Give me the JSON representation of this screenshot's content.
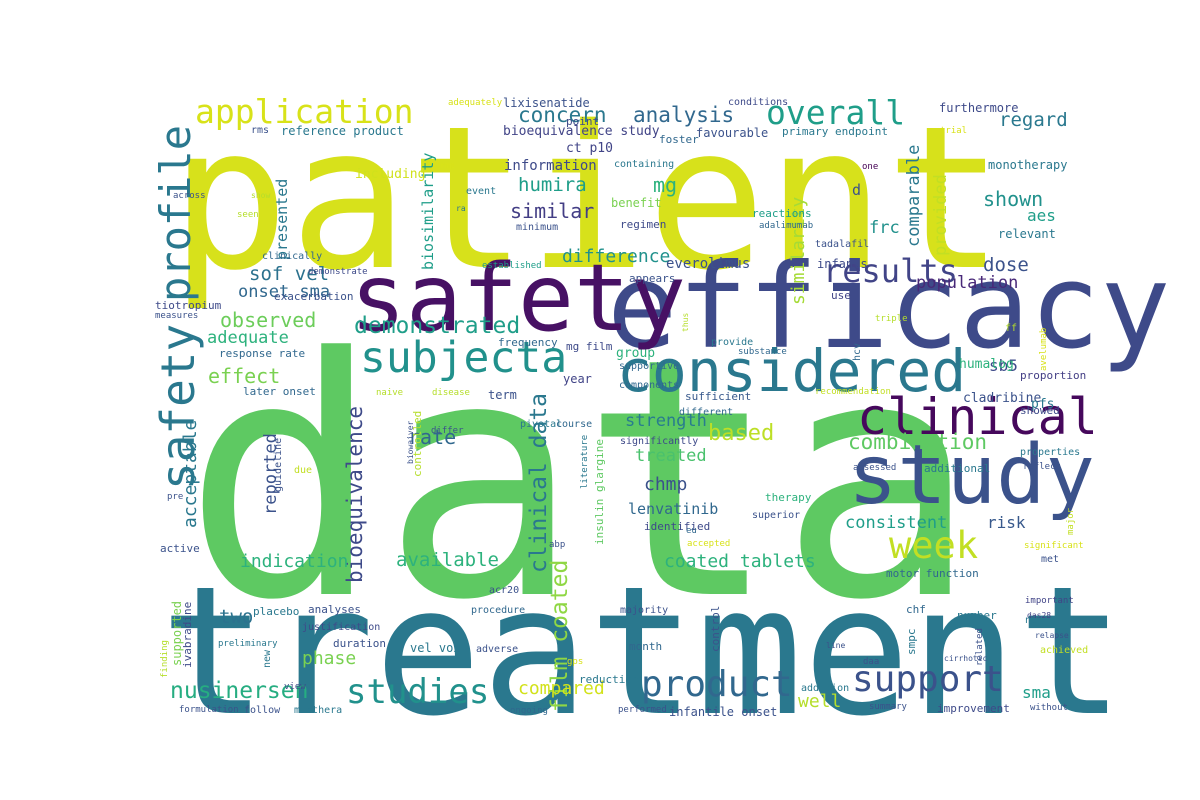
{
  "words": [
    {
      "text": "data",
      "color": "#5ec962"
    },
    {
      "text": "patient",
      "color": "#d7e11b"
    },
    {
      "text": "treatment",
      "color": "#2a788e"
    },
    {
      "text": "efficacy",
      "color": "#3e4a89"
    },
    {
      "text": "safety",
      "color": "#471164"
    },
    {
      "text": "study",
      "color": "#3b528b"
    },
    {
      "text": "considered",
      "color": "#2a788e"
    },
    {
      "text": "clinical",
      "color": "#46085c"
    },
    {
      "text": "subjecta",
      "color": "#21918c"
    },
    {
      "text": "safety",
      "color": "#2a788e"
    },
    {
      "text": "profile",
      "color": "#2a788e"
    },
    {
      "text": "application",
      "color": "#d8e219"
    },
    {
      "text": "overall",
      "color": "#1f9e89"
    },
    {
      "text": "results",
      "color": "#414487"
    },
    {
      "text": "week",
      "color": "#c2df23"
    },
    {
      "text": "support",
      "color": "#3b528b"
    },
    {
      "text": "product",
      "color": "#31688e"
    },
    {
      "text": "studies",
      "color": "#21918c"
    },
    {
      "text": "nusinersen",
      "color": "#26ad81"
    },
    {
      "text": "demonstrated",
      "color": "#1f9e89"
    },
    {
      "text": "combination",
      "color": "#5ec962"
    },
    {
      "text": "based",
      "color": "#bddf26"
    },
    {
      "text": "clinical data",
      "color": "#2a788e"
    },
    {
      "text": "film coated",
      "color": "#8fd744"
    },
    {
      "text": "bioequivalence",
      "color": "#3e4a89"
    },
    {
      "text": "concern",
      "color": "#2a788e"
    },
    {
      "text": "analysis",
      "color": "#31688e"
    },
    {
      "text": "humira",
      "color": "#1f9e89"
    },
    {
      "text": "similar",
      "color": "#433e85"
    },
    {
      "text": "mg",
      "color": "#2db27d"
    },
    {
      "text": "frc",
      "color": "#21918c"
    },
    {
      "text": "d",
      "color": "#3b528b"
    },
    {
      "text": "difference",
      "color": "#21918c"
    },
    {
      "text": "sof vel",
      "color": "#2c728e"
    },
    {
      "text": "onset sma",
      "color": "#31688e"
    },
    {
      "text": "observed",
      "color": "#6ccd5a"
    },
    {
      "text": "adequate",
      "color": "#2db27d"
    },
    {
      "text": "effect",
      "color": "#7ad151"
    },
    {
      "text": "acceptable",
      "color": "#2a788e"
    },
    {
      "text": "reported",
      "color": "#3b528b"
    },
    {
      "text": "rate",
      "color": "#31688e"
    },
    {
      "text": "dose",
      "color": "#3b528b"
    },
    {
      "text": "population",
      "color": "#482878"
    },
    {
      "text": "shown",
      "color": "#21918c"
    },
    {
      "text": "aes",
      "color": "#1f9e89"
    },
    {
      "text": "regard",
      "color": "#2a788e"
    },
    {
      "text": "similarity",
      "color": "#a5db36"
    },
    {
      "text": "comparable",
      "color": "#2a788e"
    },
    {
      "text": "provided",
      "color": "#c2df23"
    },
    {
      "text": "strength",
      "color": "#287c8e"
    },
    {
      "text": "treated",
      "color": "#4ac16d"
    },
    {
      "text": "chmp",
      "color": "#3b528b"
    },
    {
      "text": "lenvatinib",
      "color": "#31688e"
    },
    {
      "text": "consistent",
      "color": "#1f9e89"
    },
    {
      "text": "risk",
      "color": "#38598c"
    },
    {
      "text": "sb5",
      "color": "#3e4a89"
    },
    {
      "text": "indication",
      "color": "#2db27d"
    },
    {
      "text": "available",
      "color": "#2db27d"
    },
    {
      "text": "coated tablets",
      "color": "#2db27d"
    },
    {
      "text": "two",
      "color": "#2c728e"
    },
    {
      "text": "phase",
      "color": "#7ad151"
    },
    {
      "text": "compared",
      "color": "#d2e21b"
    },
    {
      "text": "well",
      "color": "#b5de2b"
    },
    {
      "text": "sma",
      "color": "#1f9e89"
    },
    {
      "text": "biosimilarity",
      "color": "#1f9e89"
    },
    {
      "text": "presented",
      "color": "#2a788e"
    },
    {
      "text": "information",
      "color": "#3e4a89"
    },
    {
      "text": "ct p10",
      "color": "#414487"
    },
    {
      "text": "everolimus",
      "color": "#3b528b"
    },
    {
      "text": "furthermore",
      "color": "#3e4a89"
    },
    {
      "text": "monotherapy",
      "color": "#2a788e"
    },
    {
      "text": "relevant",
      "color": "#2a788e"
    },
    {
      "text": "group",
      "color": "#2db27d"
    },
    {
      "text": "supportive",
      "color": "#31688e"
    },
    {
      "text": "mg film",
      "color": "#3e4a89"
    },
    {
      "text": "frequency",
      "color": "#31688e"
    },
    {
      "text": "year",
      "color": "#414487"
    },
    {
      "text": "term",
      "color": "#3b528b"
    },
    {
      "text": "components",
      "color": "#31688e"
    },
    {
      "text": "sufficient",
      "color": "#38598c"
    },
    {
      "text": "appears",
      "color": "#3b528b"
    },
    {
      "text": "infants",
      "color": "#3e4a89"
    },
    {
      "text": "use",
      "color": "#414487"
    },
    {
      "text": "humalog",
      "color": "#2db27d"
    },
    {
      "text": "cladribine",
      "color": "#3b528b"
    },
    {
      "text": "pfs",
      "color": "#2a788e"
    },
    {
      "text": "proportion",
      "color": "#433e85"
    },
    {
      "text": "showed",
      "color": "#3e4a89"
    },
    {
      "text": "including",
      "color": "#d0e11c"
    },
    {
      "text": "bioequivalence study",
      "color": "#414487"
    },
    {
      "text": "reference product",
      "color": "#2a788e"
    },
    {
      "text": "lixisenatide",
      "color": "#3b528b"
    },
    {
      "text": "favourable",
      "color": "#3b528b"
    },
    {
      "text": "primary endpoint",
      "color": "#2a788e"
    },
    {
      "text": "conditions",
      "color": "#3e4a89"
    },
    {
      "text": "adequately",
      "color": "#d8e219"
    },
    {
      "text": "point",
      "color": "#3e4a89"
    },
    {
      "text": "foster",
      "color": "#31688e"
    },
    {
      "text": "trial",
      "color": "#d8e219"
    },
    {
      "text": "rms",
      "color": "#3b528b"
    },
    {
      "text": "containing",
      "color": "#2a788e"
    },
    {
      "text": "benefit",
      "color": "#7ad151"
    },
    {
      "text": "regimen",
      "color": "#3e4a89"
    },
    {
      "text": "reactions",
      "color": "#1f9e89"
    },
    {
      "text": "adalimumab",
      "color": "#31688e"
    },
    {
      "text": "tadalafil",
      "color": "#3b528b"
    },
    {
      "text": "event",
      "color": "#2a788e"
    },
    {
      "text": "minimum",
      "color": "#3b528b"
    },
    {
      "text": "one",
      "color": "#440154"
    },
    {
      "text": "rmp",
      "color": "#d8e219"
    },
    {
      "text": "ra",
      "color": "#2a788e"
    },
    {
      "text": "across",
      "color": "#3b528b"
    },
    {
      "text": "show",
      "color": "#b5de2b"
    },
    {
      "text": "seen",
      "color": "#b5de2b"
    },
    {
      "text": "clinically",
      "color": "#31688e"
    },
    {
      "text": "demonstrate",
      "color": "#3e4a89"
    },
    {
      "text": "established",
      "color": "#1f9e89"
    },
    {
      "text": "tiotropium",
      "color": "#3e4a89"
    },
    {
      "text": "measures",
      "color": "#3b528b"
    },
    {
      "text": "exacerbation",
      "color": "#3b528b"
    },
    {
      "text": "response rate",
      "color": "#31688e"
    },
    {
      "text": "later onset",
      "color": "#31688e"
    },
    {
      "text": "naive",
      "color": "#b5de2b"
    },
    {
      "text": "disease",
      "color": "#b5de2b"
    },
    {
      "text": "pivotal",
      "color": "#2a788e"
    },
    {
      "text": "course",
      "color": "#31688e"
    },
    {
      "text": "significantly",
      "color": "#3e4a89"
    },
    {
      "text": "different",
      "color": "#31688e"
    },
    {
      "text": "recommendation",
      "color": "#c2df23"
    },
    {
      "text": "substance",
      "color": "#31688e"
    },
    {
      "text": "provide",
      "color": "#2a788e"
    },
    {
      "text": "hcv",
      "color": "#31688e"
    },
    {
      "text": "thus",
      "color": "#b5de2b"
    },
    {
      "text": "triple",
      "color": "#b5de2b"
    },
    {
      "text": "ff",
      "color": "#b5de2b"
    },
    {
      "text": "avelumab",
      "color": "#d8e219"
    },
    {
      "text": "properties",
      "color": "#2a788e"
    },
    {
      "text": "reflect",
      "color": "#3b528b"
    },
    {
      "text": "assessed",
      "color": "#3b528b"
    },
    {
      "text": "additional",
      "color": "#2a788e"
    },
    {
      "text": "therapy",
      "color": "#2db27d"
    },
    {
      "text": "superior",
      "color": "#3b528b"
    },
    {
      "text": "identified",
      "color": "#3e4a89"
    },
    {
      "text": "eu",
      "color": "#31688e"
    },
    {
      "text": "accepted",
      "color": "#d8e219"
    },
    {
      "text": "significant",
      "color": "#d8e219"
    },
    {
      "text": "met",
      "color": "#3b528b"
    },
    {
      "text": "major",
      "color": "#c2df23"
    },
    {
      "text": "motor function",
      "color": "#31688e"
    },
    {
      "text": "important",
      "color": "#414487"
    },
    {
      "text": "chf",
      "color": "#31688e"
    },
    {
      "text": "das28",
      "color": "#414487"
    },
    {
      "text": "non",
      "color": "#2a788e"
    },
    {
      "text": "number",
      "color": "#2a788e"
    },
    {
      "text": "relapse",
      "color": "#3b528b"
    },
    {
      "text": "achieved",
      "color": "#c2df23"
    },
    {
      "text": "related",
      "color": "#3b528b"
    },
    {
      "text": "cirrhotic",
      "color": "#3b528b"
    },
    {
      "text": "line",
      "color": "#3b528b"
    },
    {
      "text": "daa",
      "color": "#3b528b"
    },
    {
      "text": "smpc",
      "color": "#2a788e"
    },
    {
      "text": "control",
      "color": "#3b528b"
    },
    {
      "text": "month",
      "color": "#31688e"
    },
    {
      "text": "majority",
      "color": "#3b528b"
    },
    {
      "text": "procedure",
      "color": "#31688e"
    },
    {
      "text": "acr20",
      "color": "#3b528b"
    },
    {
      "text": "gps",
      "color": "#d8e219"
    },
    {
      "text": "adverse",
      "color": "#3b528b"
    },
    {
      "text": "reduction",
      "color": "#2a788e"
    },
    {
      "text": "addition",
      "color": "#2a788e"
    },
    {
      "text": "summary",
      "color": "#3b528b"
    },
    {
      "text": "improvement",
      "color": "#3e4a89"
    },
    {
      "text": "without",
      "color": "#3b528b"
    },
    {
      "text": "infantile onset",
      "color": "#3b528b"
    },
    {
      "text": "performed",
      "color": "#3b528b"
    },
    {
      "text": "ongoing",
      "color": "#31688e"
    },
    {
      "text": "vel vox",
      "color": "#2a788e"
    },
    {
      "text": "duration",
      "color": "#3b528b"
    },
    {
      "text": "justification",
      "color": "#3e4a89"
    },
    {
      "text": "analyses",
      "color": "#3b528b"
    },
    {
      "text": "placebo",
      "color": "#2a788e"
    },
    {
      "text": "preliminary",
      "color": "#2a788e"
    },
    {
      "text": "ivabradine",
      "color": "#3e4a89"
    },
    {
      "text": "supported",
      "color": "#7ad151"
    },
    {
      "text": "new",
      "color": "#2a788e"
    },
    {
      "text": "view",
      "color": "#3e4a89"
    },
    {
      "text": "finding",
      "color": "#b5de2b"
    },
    {
      "text": "formulation",
      "color": "#3b528b"
    },
    {
      "text": "follow",
      "color": "#3b528b"
    },
    {
      "text": "mabthera",
      "color": "#2a788e"
    },
    {
      "text": "active",
      "color": "#3b528b"
    },
    {
      "text": "pre",
      "color": "#3b528b"
    },
    {
      "text": "guideline",
      "color": "#3b528b"
    },
    {
      "text": "due",
      "color": "#c2df23"
    },
    {
      "text": "controlled",
      "color": "#b5de2b"
    },
    {
      "text": "biowaiver",
      "color": "#3b528b"
    },
    {
      "text": "differ",
      "color": "#3b528b"
    },
    {
      "text": "literature",
      "color": "#2a788e"
    },
    {
      "text": "insulin glargine",
      "color": "#5ec962"
    },
    {
      "text": "abp",
      "color": "#3b528b"
    }
  ]
}
